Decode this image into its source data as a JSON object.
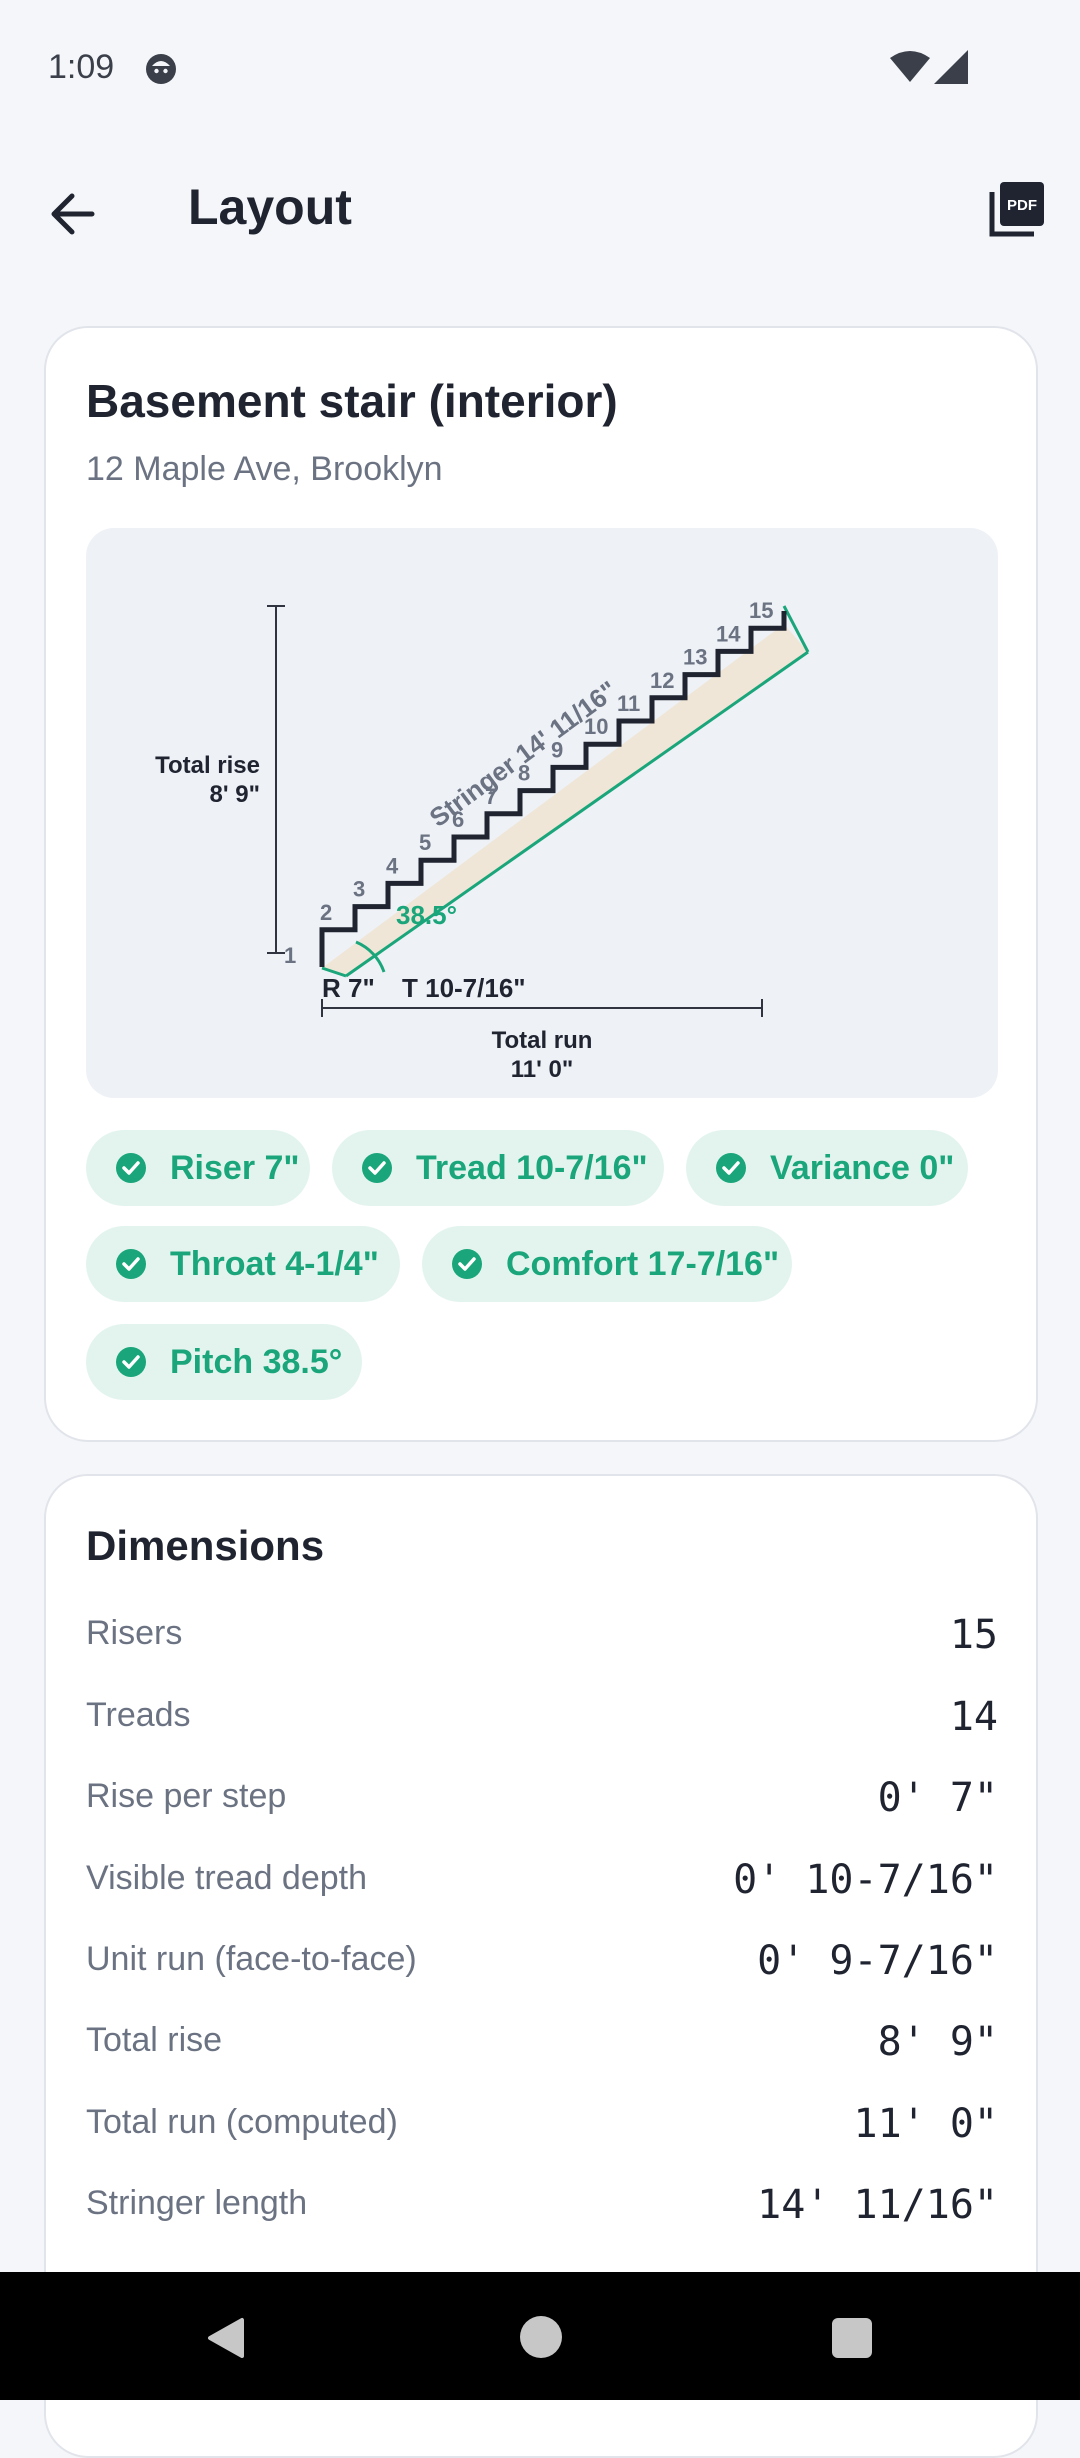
{
  "status_bar": {
    "time": "1:09"
  },
  "app_bar": {
    "title": "Layout"
  },
  "project": {
    "name": "Basement stair (interior)",
    "address": "12 Maple Ave, Brooklyn"
  },
  "diagram": {
    "total_rise_label": "Total rise",
    "total_rise_value": "8' 9\"",
    "total_run_label": "Total run",
    "total_run_value": "11' 0\"",
    "riser_label": "R 7\"",
    "tread_label": "T 10-7/16\"",
    "angle_label": "38.5°",
    "stringer_label": "Stringer 14' 11/16\"",
    "step_numbers": [
      "1",
      "2",
      "3",
      "4",
      "5",
      "6",
      "7",
      "8",
      "9",
      "10",
      "11",
      "12",
      "13",
      "14",
      "15"
    ]
  },
  "checks": [
    "Riser 7\"",
    "Tread 10-7/16\"",
    "Variance 0\"",
    "Throat 4-1/4\"",
    "Comfort 17-7/16\"",
    "Pitch 38.5°"
  ],
  "dimensions": {
    "title": "Dimensions",
    "rows": [
      {
        "label": "Risers",
        "value": "15"
      },
      {
        "label": "Treads",
        "value": "14"
      },
      {
        "label": "Rise per step",
        "value": "0' 7\""
      },
      {
        "label": "Visible tread depth",
        "value": "0' 10-7/16\""
      },
      {
        "label": "Unit run (face-to-face)",
        "value": "0' 9-7/16\""
      },
      {
        "label": "Total rise",
        "value": "8' 9\""
      },
      {
        "label": "Total run (computed)",
        "value": "11' 0\""
      },
      {
        "label": "Stringer length",
        "value": "14' 11/16\""
      }
    ]
  },
  "colors": {
    "accent": "#1aa67a",
    "chip_bg": "#e3f4ee",
    "stringer_fill": "#efe6d8",
    "text_dark": "#1f2430",
    "text_muted": "#6b7383"
  }
}
